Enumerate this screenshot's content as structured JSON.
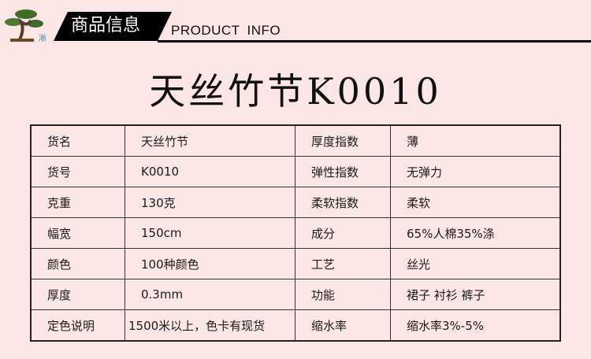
{
  "header": {
    "title_cn": "商品信息",
    "title_en": "PRODUCT  INFO",
    "logo_text": "淅"
  },
  "product_title": "天丝竹节K0010",
  "rows": [
    [
      "货名",
      "天丝竹节",
      "厚度指数",
      "薄"
    ],
    [
      "货号",
      "K0010",
      "弹性指数",
      "无弹力"
    ],
    [
      "克重",
      "130克",
      "柔软指数",
      "柔软"
    ],
    [
      "幅宽",
      "150cm",
      "成分",
      "65%人棉35%涤"
    ],
    [
      "颜色",
      "100种颜色",
      "工艺",
      "丝光"
    ],
    [
      "厚度",
      "0.3mm",
      "功能",
      "裙子  衬衫  裤子"
    ],
    [
      "定色说明",
      "1500米以上，色卡有现货",
      "缩水率",
      "缩水率3%-5%"
    ]
  ]
}
